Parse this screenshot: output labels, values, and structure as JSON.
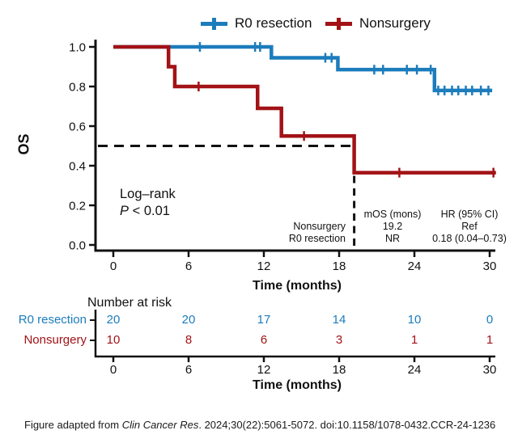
{
  "chart_data": {
    "type": "line",
    "subtype": "kaplan-meier-step",
    "title": "",
    "xlabel": "Time (months)",
    "ylabel": "OS",
    "xlim": [
      0,
      30
    ],
    "ylim": [
      0.0,
      1.0
    ],
    "xticks": [
      0,
      6,
      12,
      18,
      24,
      30
    ],
    "yticks": [
      0.0,
      0.2,
      0.4,
      0.6,
      0.8,
      1.0
    ],
    "grid": "off",
    "legend_position": "top",
    "series": [
      {
        "name": "R0 resection",
        "color": "#1c7cbc",
        "points": [
          [
            0,
            1.0
          ],
          [
            12.6,
            1.0
          ],
          [
            12.6,
            0.945
          ],
          [
            17.9,
            0.945
          ],
          [
            17.9,
            0.885
          ],
          [
            25.6,
            0.885
          ],
          [
            25.6,
            0.78
          ],
          [
            30.2,
            0.78
          ]
        ],
        "censors": [
          [
            6.9,
            1.0
          ],
          [
            11.3,
            1.0
          ],
          [
            11.7,
            1.0
          ],
          [
            16.9,
            0.945
          ],
          [
            17.4,
            0.945
          ],
          [
            20.8,
            0.885
          ],
          [
            21.5,
            0.885
          ],
          [
            23.4,
            0.885
          ],
          [
            24.2,
            0.885
          ],
          [
            25.3,
            0.885
          ],
          [
            25.9,
            0.78
          ],
          [
            26.4,
            0.78
          ],
          [
            27.0,
            0.78
          ],
          [
            27.5,
            0.78
          ],
          [
            28.1,
            0.78
          ],
          [
            28.6,
            0.78
          ],
          [
            29.3,
            0.78
          ],
          [
            29.9,
            0.78
          ]
        ]
      },
      {
        "name": "Nonsurgery",
        "color": "#a21216",
        "points": [
          [
            0,
            1.0
          ],
          [
            4.4,
            1.0
          ],
          [
            4.4,
            0.9
          ],
          [
            4.9,
            0.9
          ],
          [
            4.9,
            0.8
          ],
          [
            11.5,
            0.8
          ],
          [
            11.5,
            0.69
          ],
          [
            13.4,
            0.69
          ],
          [
            13.4,
            0.55
          ],
          [
            19.2,
            0.55
          ],
          [
            19.2,
            0.365
          ],
          [
            30.5,
            0.365
          ]
        ],
        "censors": [
          [
            6.8,
            0.8
          ],
          [
            15.2,
            0.55
          ],
          [
            22.8,
            0.365
          ],
          [
            30.3,
            0.365
          ]
        ]
      }
    ],
    "reference_lines": {
      "h_value": 0.5,
      "v_month": 19.2
    }
  },
  "annotations": {
    "logrank_line1": "Log–rank",
    "logrank_p_italic": "P",
    "logrank_p_rest": " < 0.01",
    "inner_table": {
      "row_labels": [
        "Nonsurgery",
        "R0 resection"
      ],
      "columns": [
        {
          "header": "mOS (mons)",
          "values": [
            "19.2",
            "NR"
          ]
        },
        {
          "header": "HR (95% CI)",
          "values": [
            "Ref",
            "0.18 (0.04–0.73)"
          ]
        }
      ]
    }
  },
  "risk_table": {
    "title": "Number at risk",
    "rows": [
      {
        "label": "R0 resection",
        "color": "#1c7cbc",
        "counts": [
          20,
          20,
          17,
          14,
          10,
          0
        ]
      },
      {
        "label": "Nonsurgery",
        "color": "#a21216",
        "counts": [
          10,
          8,
          6,
          3,
          1,
          1
        ]
      }
    ]
  },
  "footer": {
    "prefix": "Figure adapted from ",
    "journal": "Clin Cancer Res",
    "rest": ". 2024;30(22):5061-5072. doi:10.1158/1078-0432.CCR-24-1236"
  }
}
